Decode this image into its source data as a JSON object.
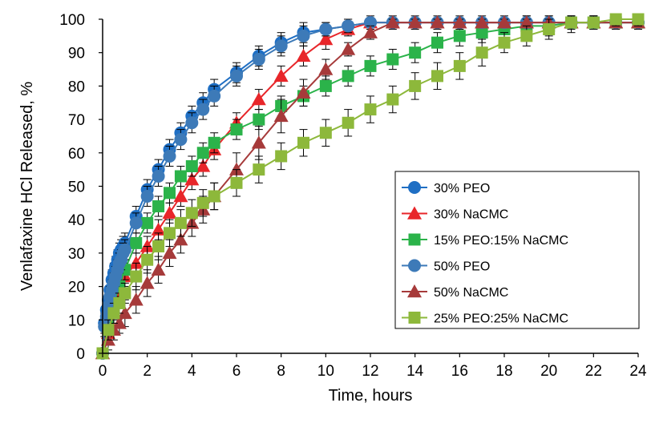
{
  "chart_data": {
    "type": "line",
    "title": "",
    "xlabel": "Time, hours",
    "ylabel": "Venlafaxine HCl Released, %",
    "xlim": [
      0,
      24
    ],
    "ylim": [
      0,
      100
    ],
    "xticks": [
      0,
      2,
      4,
      6,
      8,
      10,
      12,
      14,
      16,
      18,
      20,
      22,
      24
    ],
    "yticks": [
      0,
      10,
      20,
      30,
      40,
      50,
      60,
      70,
      80,
      90,
      100
    ],
    "grid": false,
    "legend_position": "right",
    "series": [
      {
        "name": "30% PEO",
        "color": "#1f6fc4",
        "marker": "circle",
        "x": [
          0,
          0.08,
          0.17,
          0.25,
          0.33,
          0.42,
          0.5,
          0.58,
          0.67,
          0.75,
          0.83,
          0.92,
          1,
          1.5,
          2,
          2.5,
          3,
          3.5,
          4,
          4.5,
          5,
          6,
          7,
          8,
          9,
          10,
          11,
          12,
          13,
          14,
          15,
          16,
          17,
          18,
          19,
          20,
          21,
          22,
          23,
          24
        ],
        "y": [
          0,
          9,
          13,
          16,
          19,
          22,
          24,
          26,
          28,
          30,
          31,
          32,
          33,
          41,
          49,
          55,
          61,
          66,
          71,
          75,
          79,
          84,
          89,
          93,
          96,
          97,
          98,
          99,
          99,
          99,
          99,
          99,
          99,
          99,
          99,
          99,
          99,
          99,
          99,
          99
        ],
        "err": [
          0,
          3,
          3,
          3,
          3,
          3,
          3,
          3,
          3,
          3,
          3,
          3,
          3,
          3,
          3,
          3,
          3,
          3,
          3,
          3,
          3,
          3,
          3,
          3,
          3,
          2,
          2,
          1,
          1,
          1,
          1,
          1,
          1,
          1,
          1,
          1,
          1,
          1,
          1,
          1
        ]
      },
      {
        "name": "30% NaCMC",
        "color": "#e8262a",
        "marker": "triangle",
        "x": [
          0,
          0.25,
          0.5,
          0.75,
          1,
          1.5,
          2,
          2.5,
          3,
          3.5,
          4,
          4.5,
          5,
          6,
          7,
          8,
          9,
          10,
          11,
          12,
          13,
          14,
          15,
          16,
          17,
          18,
          19,
          20,
          21,
          22,
          23,
          24
        ],
        "y": [
          0,
          6,
          12,
          18,
          23,
          27,
          32,
          37,
          42,
          47,
          52,
          56,
          61,
          69,
          76,
          83,
          89,
          94,
          97,
          99,
          99,
          99,
          99,
          99,
          99,
          99,
          99,
          99,
          99,
          99,
          99,
          99
        ],
        "err": [
          0,
          3,
          3,
          3,
          3,
          3,
          3,
          3,
          3,
          3,
          3,
          3,
          3,
          3,
          3,
          3,
          3,
          3,
          2,
          2,
          2,
          2,
          2,
          2,
          2,
          2,
          2,
          2,
          2,
          2,
          2,
          2
        ]
      },
      {
        "name": "15% PEO:15% NaCMC",
        "color": "#2bb34a",
        "marker": "square",
        "x": [
          0,
          0.25,
          0.5,
          0.75,
          1,
          1.5,
          2,
          2.5,
          3,
          3.5,
          4,
          4.5,
          5,
          6,
          7,
          8,
          9,
          10,
          11,
          12,
          13,
          14,
          15,
          16,
          17,
          18,
          19,
          20,
          21,
          22,
          23,
          24
        ],
        "y": [
          0,
          8,
          15,
          20,
          25,
          33,
          39,
          44,
          48,
          53,
          56,
          60,
          63,
          67,
          70,
          74,
          77,
          80,
          83,
          86,
          88,
          90,
          93,
          95,
          96,
          97,
          98,
          98,
          99,
          99,
          99,
          99
        ],
        "err": [
          0,
          3,
          3,
          3,
          3,
          3,
          3,
          3,
          3,
          3,
          3,
          3,
          3,
          3,
          3,
          3,
          3,
          3,
          3,
          3,
          3,
          3,
          3,
          3,
          3,
          3,
          3,
          3,
          3,
          2,
          2,
          2
        ]
      },
      {
        "name": "50% PEO",
        "color": "#3d7ab8",
        "marker": "circle",
        "x": [
          0,
          0.08,
          0.17,
          0.25,
          0.33,
          0.42,
          0.5,
          0.58,
          0.67,
          0.75,
          0.83,
          0.92,
          1,
          1.5,
          2,
          2.5,
          3,
          3.5,
          4,
          4.5,
          5,
          6,
          7,
          8,
          9,
          10,
          11,
          12,
          13,
          14,
          15,
          16,
          17,
          18,
          19,
          20,
          21,
          22,
          23,
          24
        ],
        "y": [
          0,
          8,
          11,
          14,
          17,
          19,
          21,
          23,
          25,
          27,
          28,
          30,
          31,
          39,
          47,
          53,
          59,
          64,
          69,
          73,
          77,
          83,
          88,
          92,
          95,
          97,
          98,
          99,
          99,
          99,
          99,
          99,
          99,
          99,
          99,
          99,
          99,
          99,
          99,
          99
        ],
        "err": [
          0,
          3,
          3,
          3,
          3,
          3,
          3,
          3,
          3,
          3,
          3,
          3,
          3,
          3,
          3,
          3,
          3,
          3,
          3,
          3,
          3,
          3,
          3,
          3,
          3,
          2,
          2,
          1,
          1,
          1,
          1,
          1,
          1,
          1,
          1,
          1,
          1,
          1,
          1,
          1
        ]
      },
      {
        "name": "50% NaCMC",
        "color": "#a63a3a",
        "marker": "triangle",
        "x": [
          0,
          0.25,
          0.5,
          0.75,
          1,
          1.5,
          2,
          2.5,
          3,
          3.5,
          4,
          4.5,
          5,
          6,
          7,
          8,
          9,
          10,
          11,
          12,
          13,
          14,
          15,
          16,
          17,
          18,
          19,
          20,
          21,
          22,
          23,
          24
        ],
        "y": [
          0,
          4,
          7,
          9,
          12,
          16,
          21,
          25,
          30,
          34,
          39,
          43,
          47,
          55,
          63,
          71,
          78,
          85,
          91,
          96,
          99,
          99,
          99,
          99,
          99,
          99,
          99,
          99,
          99,
          99,
          99,
          99
        ],
        "err": [
          0,
          3,
          3,
          3,
          4,
          4,
          4,
          4,
          4,
          4,
          4,
          4,
          4,
          5,
          5,
          5,
          4,
          3,
          2,
          2,
          1,
          1,
          1,
          1,
          1,
          1,
          1,
          1,
          1,
          1,
          1,
          1
        ]
      },
      {
        "name": "25% PEO:25% NaCMC",
        "color": "#8db83b",
        "marker": "square",
        "x": [
          0,
          0.25,
          0.5,
          0.75,
          1,
          1.5,
          2,
          2.5,
          3,
          3.5,
          4,
          4.5,
          5,
          6,
          7,
          8,
          9,
          10,
          11,
          12,
          13,
          14,
          15,
          16,
          17,
          18,
          19,
          20,
          21,
          22,
          23,
          24
        ],
        "y": [
          0,
          7,
          12,
          15,
          18,
          23,
          28,
          32,
          36,
          39,
          42,
          45,
          47,
          51,
          55,
          59,
          63,
          66,
          69,
          73,
          76,
          80,
          83,
          86,
          90,
          93,
          95,
          97,
          99,
          99,
          100,
          100
        ],
        "err": [
          0,
          3,
          3,
          3,
          3,
          4,
          4,
          4,
          4,
          4,
          4,
          4,
          4,
          4,
          4,
          4,
          4,
          4,
          4,
          4,
          4,
          4,
          4,
          4,
          4,
          3,
          3,
          3,
          2,
          2,
          2,
          2
        ]
      }
    ]
  }
}
